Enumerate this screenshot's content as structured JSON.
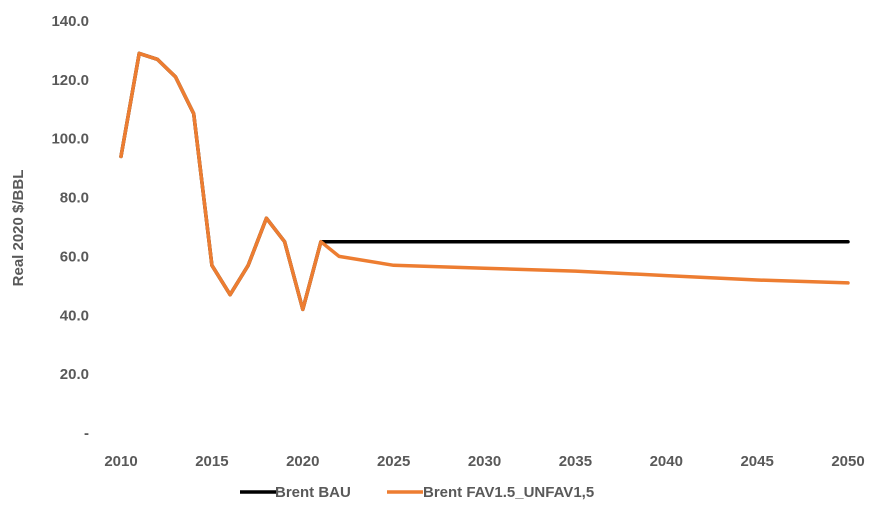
{
  "chart_data": {
    "type": "line",
    "title": "",
    "xlabel": "",
    "ylabel": "Real 2020 $/BBL",
    "xlim": [
      2010,
      2050
    ],
    "ylim": [
      0,
      140
    ],
    "grid": false,
    "legend_position": "bottom",
    "x_tick_labels": [
      "2010",
      "2015",
      "2020",
      "2025",
      "2030",
      "2035",
      "2040",
      "2045",
      "2050"
    ],
    "y_tick_labels": [
      "-",
      "20.0",
      "40.0",
      "60.0",
      "80.0",
      "100.0",
      "120.0",
      "140.0"
    ],
    "series": [
      {
        "name": "Brent BAU",
        "color": "#000000",
        "x": [
          2010,
          2011,
          2012,
          2013,
          2014,
          2015,
          2016,
          2017,
          2018,
          2019,
          2020,
          2021,
          2050
        ],
        "y": [
          94,
          129,
          127,
          121,
          108.5,
          57,
          47,
          57,
          73,
          65,
          42,
          65,
          65
        ]
      },
      {
        "name": "Brent FAV1.5_UNFAV1,5",
        "color": "#ED7D31",
        "x": [
          2010,
          2011,
          2012,
          2013,
          2014,
          2015,
          2016,
          2017,
          2018,
          2019,
          2020,
          2021,
          2022,
          2025,
          2030,
          2035,
          2040,
          2045,
          2050
        ],
        "y": [
          94,
          129,
          127,
          121,
          108.5,
          57,
          47,
          57,
          73,
          65,
          42,
          65,
          60,
          57,
          56,
          55,
          53.5,
          52,
          51
        ]
      }
    ]
  }
}
